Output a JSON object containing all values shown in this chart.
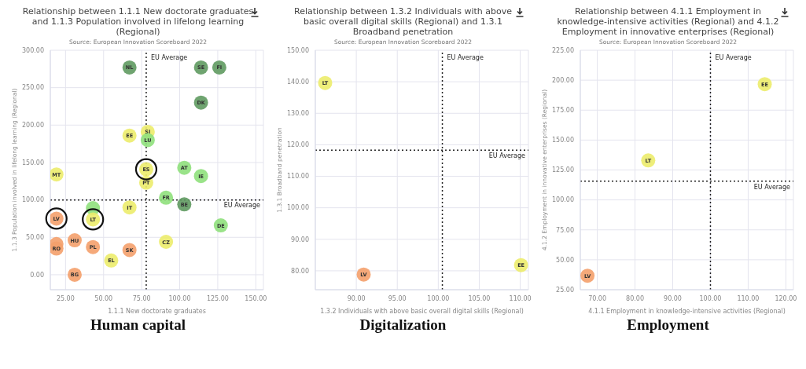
{
  "chart_data": [
    {
      "type": "scatter",
      "title": "Relationship between 1.1.1 New doctorate graduates and 1.1.3 Population involved in lifelong learning (Regional)",
      "subtitle": "Source: European Innovation Scoreboard 2022",
      "xlabel": "1.1.1 New doctorate graduates",
      "ylabel": "1.1.3 Population involved in lifelong learning (Regional)",
      "annotations": [
        "Human capital"
      ],
      "xlim": [
        15,
        155
      ],
      "ylim": [
        -20,
        300
      ],
      "xticks": [
        {
          "value": 25,
          "label": "25.00"
        },
        {
          "value": 50,
          "label": "50.00"
        },
        {
          "value": 75,
          "label": "75.00"
        },
        {
          "value": 100,
          "label": "100.00"
        },
        {
          "value": 125,
          "label": "125.00"
        },
        {
          "value": 150,
          "label": "150.00"
        }
      ],
      "yticks": [
        {
          "value": 0,
          "label": "0.00"
        },
        {
          "value": 50,
          "label": "50.00"
        },
        {
          "value": 100,
          "label": "100.00"
        },
        {
          "value": 150,
          "label": "150.00"
        },
        {
          "value": 200,
          "label": "200.00"
        },
        {
          "value": 250,
          "label": "250.00"
        },
        {
          "value": 300,
          "label": "300.00"
        }
      ],
      "grid": true,
      "marker": "circle",
      "ref_lines": [
        {
          "axis": "x",
          "value": 78,
          "label": "EU Average",
          "line_style": "dotted"
        },
        {
          "axis": "y",
          "value": 100,
          "label": "EU Average",
          "line_style": "dotted"
        }
      ],
      "series": [
        {
          "name": "NL",
          "color": "#5f9a60",
          "x": [
            67
          ],
          "values": [
            277
          ]
        },
        {
          "name": "SE",
          "color": "#5f9a60",
          "x": [
            114
          ],
          "values": [
            277
          ]
        },
        {
          "name": "FI",
          "color": "#5f9a60",
          "x": [
            126
          ],
          "values": [
            277
          ]
        },
        {
          "name": "DK",
          "color": "#5f9a60",
          "x": [
            114
          ],
          "values": [
            230
          ]
        },
        {
          "name": "SI",
          "color": "#ecec6c",
          "x": [
            79
          ],
          "values": [
            191
          ]
        },
        {
          "name": "EE",
          "color": "#ecec6c",
          "x": [
            67
          ],
          "values": [
            186
          ]
        },
        {
          "name": "LU",
          "color": "#8fe07c",
          "x": [
            79
          ],
          "values": [
            180
          ]
        },
        {
          "name": "ES",
          "color": "#ecec6c",
          "x": [
            78
          ],
          "values": [
            141
          ]
        },
        {
          "name": "AT",
          "color": "#8fe07c",
          "x": [
            103
          ],
          "values": [
            143
          ]
        },
        {
          "name": "IE",
          "color": "#8fe07c",
          "x": [
            114
          ],
          "values": [
            132
          ]
        },
        {
          "name": "MT",
          "color": "#ecec6c",
          "x": [
            19
          ],
          "values": [
            134
          ]
        },
        {
          "name": "PT",
          "color": "#ecec6c",
          "x": [
            78
          ],
          "values": [
            123
          ]
        },
        {
          "name": "FR",
          "color": "#8fe07c",
          "x": [
            91
          ],
          "values": [
            103
          ]
        },
        {
          "name": "BE",
          "color": "#5f9a60",
          "x": [
            103
          ],
          "values": [
            94
          ]
        },
        {
          "name": "IT",
          "color": "#ecec6c",
          "x": [
            67
          ],
          "values": [
            90
          ]
        },
        {
          "color": "#8fe07c",
          "x": [
            43
          ],
          "values": [
            89
          ]
        },
        {
          "name": "LV",
          "color": "#f4a06c",
          "x": [
            19
          ],
          "values": [
            75
          ]
        },
        {
          "name": "LT",
          "color": "#ecec6c",
          "x": [
            43
          ],
          "values": [
            74
          ]
        },
        {
          "name": "DE",
          "color": "#8fe07c",
          "x": [
            127
          ],
          "values": [
            66
          ]
        },
        {
          "name": "HU",
          "color": "#f4a06c",
          "x": [
            31
          ],
          "values": [
            46
          ]
        },
        {
          "name": "CZ",
          "color": "#ecec6c",
          "x": [
            91
          ],
          "values": [
            44
          ]
        },
        {
          "color": "#f4a06c",
          "x": [
            19
          ],
          "values": [
            41
          ]
        },
        {
          "name": "RO",
          "color": "#f4a06c",
          "x": [
            19
          ],
          "values": [
            35
          ]
        },
        {
          "name": "PL",
          "color": "#f4a06c",
          "x": [
            43
          ],
          "values": [
            37
          ]
        },
        {
          "name": "SK",
          "color": "#f4a06c",
          "x": [
            67
          ],
          "values": [
            33
          ]
        },
        {
          "name": "EL",
          "color": "#ecec6c",
          "x": [
            55
          ],
          "values": [
            19
          ]
        },
        {
          "name": "BG",
          "color": "#f4a06c",
          "x": [
            31
          ],
          "values": [
            0
          ]
        }
      ]
    },
    {
      "type": "scatter",
      "title": "Relationship between 1.3.2 Individuals with above basic overall digital skills (Regional) and 1.3.1 Broadband penetration",
      "subtitle": "Source: European Innovation Scoreboard 2022",
      "xlabel": "1.3.2 Individuals with above basic overall digital skills (Regional)",
      "ylabel": "1.3.1 Broadband penetration",
      "annotations": [
        "Digitalization"
      ],
      "xlim": [
        85,
        111
      ],
      "ylim": [
        74,
        150
      ],
      "xticks": [
        {
          "value": 90,
          "label": "90.00"
        },
        {
          "value": 95,
          "label": "95.00"
        },
        {
          "value": 100,
          "label": "100.00"
        },
        {
          "value": 105,
          "label": "105.00"
        },
        {
          "value": 110,
          "label": "110.00"
        }
      ],
      "yticks": [
        {
          "value": 80,
          "label": "80.00"
        },
        {
          "value": 90,
          "label": "90.00"
        },
        {
          "value": 100,
          "label": "100.00"
        },
        {
          "value": 110,
          "label": "110.00"
        },
        {
          "value": 120,
          "label": "120.00"
        },
        {
          "value": 130,
          "label": "130.00"
        },
        {
          "value": 140,
          "label": "140.00"
        },
        {
          "value": 150,
          "label": "150.00"
        }
      ],
      "grid": true,
      "marker": "circle",
      "ref_lines": [
        {
          "axis": "x",
          "value": 100.5,
          "label": "EU Average",
          "line_style": "dotted"
        },
        {
          "axis": "y",
          "value": 118.3,
          "label": "EU Average",
          "line_style": "dotted"
        }
      ],
      "series": [
        {
          "name": "LT",
          "color": "#ecec6c",
          "x": [
            86.2
          ],
          "values": [
            139.6
          ]
        },
        {
          "name": "LV",
          "color": "#f4a06c",
          "x": [
            90.9
          ],
          "values": [
            78.8
          ]
        },
        {
          "name": "EE",
          "color": "#ecec6c",
          "x": [
            110.1
          ],
          "values": [
            81.8
          ]
        }
      ]
    },
    {
      "type": "scatter",
      "title": "Relationship between 4.1.1 Employment in knowledge-intensive activities (Regional) and 4.1.2 Employment in innovative enterprises (Regional)",
      "subtitle": "Source: European Innovation Scoreboard 2022",
      "xlabel": "4.1.1 Employment in knowledge-intensive activities (Regional)",
      "ylabel": "4.1.2 Employment in innovative enterprises (Regional)",
      "annotations": [
        "Employment"
      ],
      "xlim": [
        65.5,
        122
      ],
      "ylim": [
        25,
        225
      ],
      "xticks": [
        {
          "value": 70,
          "label": "70.00"
        },
        {
          "value": 80,
          "label": "80.00"
        },
        {
          "value": 90,
          "label": "90.00"
        },
        {
          "value": 100,
          "label": "100.00"
        },
        {
          "value": 110,
          "label": "110.00"
        },
        {
          "value": 120,
          "label": "120.00"
        }
      ],
      "yticks": [
        {
          "value": 25,
          "label": "25.00"
        },
        {
          "value": 50,
          "label": "50.00"
        },
        {
          "value": 75,
          "label": "75.00"
        },
        {
          "value": 100,
          "label": "100.00"
        },
        {
          "value": 125,
          "label": "125.00"
        },
        {
          "value": 150,
          "label": "150.00"
        },
        {
          "value": 175,
          "label": "175.00"
        },
        {
          "value": 200,
          "label": "200.00"
        },
        {
          "value": 225,
          "label": "225.00"
        }
      ],
      "grid": true,
      "marker": "circle",
      "ref_lines": [
        {
          "axis": "x",
          "value": 100,
          "label": "EU Average",
          "line_style": "dotted"
        },
        {
          "axis": "y",
          "value": 115.6,
          "label": "EU Average",
          "line_style": "dotted"
        }
      ],
      "series": [
        {
          "name": "EE",
          "color": "#ecec6c",
          "x": [
            114.4
          ],
          "values": [
            196.7
          ]
        },
        {
          "name": "LT",
          "color": "#ecec6c",
          "x": [
            83.5
          ],
          "values": [
            133
          ]
        },
        {
          "name": "LV",
          "color": "#f4a06c",
          "x": [
            67.4
          ],
          "values": [
            36.7
          ]
        }
      ]
    }
  ]
}
